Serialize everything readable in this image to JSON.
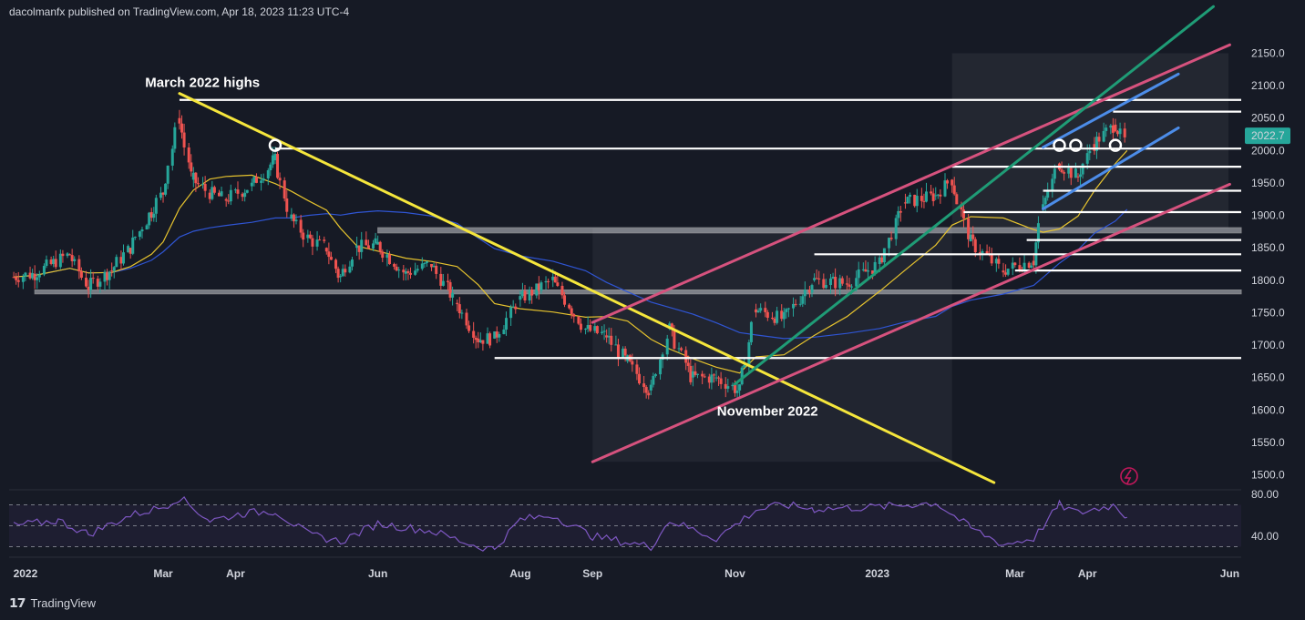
{
  "header": {
    "publisher": "dacolmanfx published on TradingView.com, Apr 18, 2023 11:23 UTC-4"
  },
  "footer": {
    "brand": "TradingView",
    "logo_icon": "tradingview-logo-icon"
  },
  "colors": {
    "background": "#161a25",
    "up": "#26a69a",
    "down": "#ef5350",
    "yellow_trend": "#f5e63c",
    "pink_channel": "#d6527e",
    "green_trend": "#1f9c76",
    "blue_channel": "#4c8ce8",
    "ma_yellow": "#e6c32e",
    "ma_blue": "#2f55d4",
    "rsi": "#7e57c2",
    "last_price_bg": "#26a69a"
  },
  "chart_data": [
    {
      "type": "candlestick",
      "symbol_current_price": "2022.7",
      "ylim": [
        1480,
        2180
      ],
      "price_ticks": [
        "2150.0",
        "2100.0",
        "2050.0",
        "2000.0",
        "1950.0",
        "1900.0",
        "1850.0",
        "1800.0",
        "1750.0",
        "1700.0",
        "1650.0",
        "1600.0",
        "1550.0",
        "1500.0"
      ],
      "price_tick_values": [
        2150,
        2100,
        2050,
        2000,
        1950,
        1900,
        1850,
        1800,
        1750,
        1700,
        1650,
        1600,
        1550,
        1500
      ],
      "date_ticks": [
        "2022",
        "Mar",
        "Apr",
        "Jun",
        "Aug",
        "Sep",
        "Nov",
        "2023",
        "Mar",
        "Apr",
        "Jun"
      ],
      "date_tick_dates": [
        "2022-01-01",
        "2022-03-01",
        "2022-04-01",
        "2022-06-01",
        "2022-08-01",
        "2022-09-01",
        "2022-11-01",
        "2023-01-01",
        "2023-03-01",
        "2023-04-01",
        "2023-06-01"
      ],
      "close_path": [
        [
          "2021-12-27",
          1805
        ],
        [
          "2022-01-05",
          1810
        ],
        [
          "2022-01-20",
          1840
        ],
        [
          "2022-01-28",
          1790
        ],
        [
          "2022-02-07",
          1815
        ],
        [
          "2022-02-15",
          1850
        ],
        [
          "2022-02-24",
          1905
        ],
        [
          "2022-03-01",
          1935
        ],
        [
          "2022-03-08",
          2050
        ],
        [
          "2022-03-14",
          1955
        ],
        [
          "2022-03-21",
          1935
        ],
        [
          "2022-03-28",
          1925
        ],
        [
          "2022-04-08",
          1945
        ],
        [
          "2022-04-18",
          1985
        ],
        [
          "2022-04-25",
          1895
        ],
        [
          "2022-05-02",
          1865
        ],
        [
          "2022-05-10",
          1850
        ],
        [
          "2022-05-16",
          1805
        ],
        [
          "2022-05-23",
          1850
        ],
        [
          "2022-06-01",
          1855
        ],
        [
          "2022-06-13",
          1810
        ],
        [
          "2022-06-24",
          1825
        ],
        [
          "2022-07-05",
          1765
        ],
        [
          "2022-07-14",
          1710
        ],
        [
          "2022-07-21",
          1710
        ],
        [
          "2022-08-01",
          1770
        ],
        [
          "2022-08-15",
          1800
        ],
        [
          "2022-08-29",
          1725
        ],
        [
          "2022-09-07",
          1715
        ],
        [
          "2022-09-16",
          1675
        ],
        [
          "2022-09-26",
          1630
        ],
        [
          "2022-10-04",
          1725
        ],
        [
          "2022-10-14",
          1650
        ],
        [
          "2022-10-24",
          1650
        ],
        [
          "2022-11-03",
          1630
        ],
        [
          "2022-11-10",
          1755
        ],
        [
          "2022-11-22",
          1740
        ],
        [
          "2022-12-05",
          1800
        ],
        [
          "2022-12-19",
          1795
        ],
        [
          "2023-01-02",
          1825
        ],
        [
          "2023-01-13",
          1920
        ],
        [
          "2023-01-26",
          1930
        ],
        [
          "2023-02-02",
          1955
        ],
        [
          "2023-02-10",
          1860
        ],
        [
          "2023-02-24",
          1815
        ],
        [
          "2023-03-09",
          1830
        ],
        [
          "2023-03-13",
          1910
        ],
        [
          "2023-03-20",
          1980
        ],
        [
          "2023-03-28",
          1960
        ],
        [
          "2023-04-04",
          2010
        ],
        [
          "2023-04-13",
          2040
        ],
        [
          "2023-04-18",
          2010
        ]
      ],
      "horizontal_levels": [
        {
          "price": 2078,
          "from": "2022-03-08",
          "to_edge": true
        },
        {
          "price": 2003,
          "from": "2022-04-18",
          "to_edge": true
        },
        {
          "price": 2060,
          "from": "2023-04-12",
          "to_edge": true
        },
        {
          "price": 1975,
          "from": "2023-02-02",
          "to_edge": true
        },
        {
          "price": 1938,
          "from": "2023-03-13",
          "to_edge": true
        },
        {
          "price": 1905,
          "from": "2023-02-07",
          "to_edge": true
        },
        {
          "price": 1862,
          "from": "2023-03-06",
          "to_edge": true
        },
        {
          "price": 1840,
          "from": "2022-12-05",
          "to_edge": true
        },
        {
          "price": 1815,
          "from": "2023-03-01",
          "to_edge": true
        },
        {
          "price": 1680,
          "from": "2022-07-21",
          "to_edge": true
        }
      ],
      "zones": [
        {
          "from": "2022-06-01",
          "to_edge": true,
          "top": 1881,
          "bottom": 1873
        },
        {
          "from": "2022-01-05",
          "to_edge": true,
          "top": 1785,
          "bottom": 1779
        }
      ],
      "trendlines": [
        {
          "name": "yellow-downtrend",
          "from": [
            "2022-03-08",
            2088
          ],
          "to": [
            "2023-02-20",
            1488
          ]
        },
        {
          "name": "pink-channel-upper",
          "from": [
            "2022-09-01",
            1735
          ],
          "to": [
            "2023-06-01",
            2163
          ]
        },
        {
          "name": "pink-channel-lower",
          "from": [
            "2022-09-01",
            1520
          ],
          "to": [
            "2023-06-01",
            1948
          ]
        },
        {
          "name": "green-uptrend",
          "from": [
            "2022-11-01",
            1640
          ],
          "to": [
            "2023-05-25",
            2222
          ]
        },
        {
          "name": "blue-channel-upper",
          "from": [
            "2023-03-13",
            2005
          ],
          "to": [
            "2023-05-10",
            2118
          ]
        },
        {
          "name": "blue-channel-lower",
          "from": [
            "2023-03-13",
            1910
          ],
          "to": [
            "2023-05-10",
            2035
          ]
        }
      ],
      "circle_markers": [
        [
          "2022-04-18",
          2008
        ],
        [
          "2023-03-20",
          2008
        ],
        [
          "2023-03-27",
          2008
        ],
        [
          "2023-04-13",
          2008
        ]
      ],
      "annotations": [
        {
          "text": "March 2022 highs",
          "anchor": [
            "2022-03-05",
            2105
          ]
        },
        {
          "text": "November 2022",
          "anchor": [
            "2022-11-05",
            1598
          ]
        }
      ]
    },
    {
      "type": "line",
      "name": "RSI",
      "ylim": [
        25,
        85
      ],
      "ticks": [
        "80.00",
        "40.00"
      ],
      "tick_values": [
        80,
        40
      ],
      "dashed_levels": [
        70,
        50,
        30
      ],
      "points": [
        [
          "2021-12-27",
          50
        ],
        [
          "2022-01-15",
          55
        ],
        [
          "2022-01-28",
          42
        ],
        [
          "2022-02-15",
          60
        ],
        [
          "2022-03-01",
          68
        ],
        [
          "2022-03-08",
          77
        ],
        [
          "2022-03-21",
          55
        ],
        [
          "2022-04-05",
          62
        ],
        [
          "2022-04-18",
          64
        ],
        [
          "2022-05-02",
          42
        ],
        [
          "2022-05-16",
          35
        ],
        [
          "2022-06-01",
          52
        ],
        [
          "2022-06-24",
          45
        ],
        [
          "2022-07-14",
          30
        ],
        [
          "2022-07-21",
          28
        ],
        [
          "2022-08-01",
          56
        ],
        [
          "2022-08-15",
          60
        ],
        [
          "2022-09-01",
          40
        ],
        [
          "2022-09-26",
          30
        ],
        [
          "2022-10-04",
          55
        ],
        [
          "2022-10-24",
          38
        ],
        [
          "2022-11-10",
          65
        ],
        [
          "2022-11-22",
          70
        ],
        [
          "2022-12-05",
          66
        ],
        [
          "2023-01-02",
          68
        ],
        [
          "2023-01-26",
          72
        ],
        [
          "2023-02-10",
          48
        ],
        [
          "2023-02-24",
          32
        ],
        [
          "2023-03-09",
          38
        ],
        [
          "2023-03-20",
          70
        ],
        [
          "2023-03-28",
          62
        ],
        [
          "2023-04-04",
          66
        ],
        [
          "2023-04-13",
          70
        ],
        [
          "2023-04-18",
          58
        ]
      ]
    }
  ]
}
